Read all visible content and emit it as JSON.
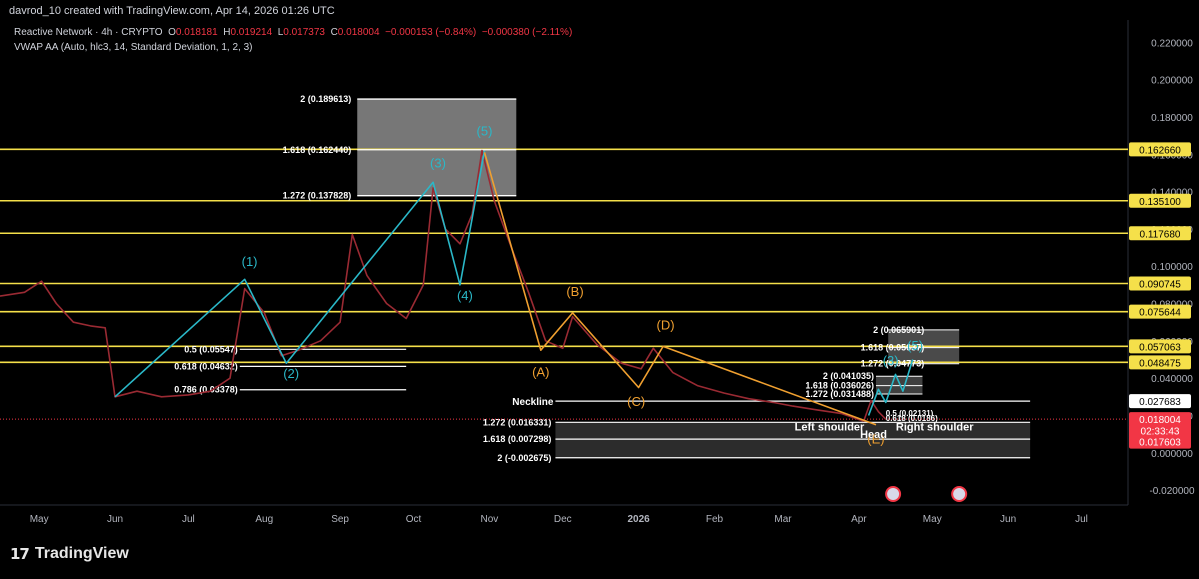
{
  "caption": "davrod_10 created with TradingView.com, Apr 14, 2026 01:26 UTC",
  "legend": {
    "symbol": "Reactive Network · 4h · CRYPTO",
    "o_label": "O",
    "o": "0.018181",
    "h_label": "H",
    "h": "0.019214",
    "l_label": "L",
    "l": "0.017373",
    "c_label": "C",
    "c": "0.018004",
    "change": "−0.000153 (−0.84%)",
    "change2": "−0.000380 (−2.11%)",
    "indicator": "VWAP AA (Auto, hlc3, 14, Standard Deviation, 1, 2, 3)"
  },
  "logo_text": "TradingView",
  "logo_mark": "17",
  "colors": {
    "background": "#000000",
    "price_line": "#9a2a33",
    "wave_blue": "#2ab8c8",
    "wave_orange": "#f0a030",
    "level_yellow": "#f5e04a",
    "white_line": "#ffffff",
    "last_price_red": "#f23645"
  },
  "chart_data": {
    "type": "line",
    "ylim": [
      -0.028,
      0.232
    ],
    "y_ticks": [
      "0.220000",
      "0.200000",
      "0.180000",
      "0.160000",
      "0.140000",
      "0.120000",
      "0.100000",
      "0.080000",
      "0.060000",
      "0.040000",
      "0.020000",
      "0.000000",
      "-0.020000"
    ],
    "y_tick_values": [
      0.22,
      0.2,
      0.18,
      0.16,
      0.14,
      0.12,
      0.1,
      0.08,
      0.06,
      0.04,
      0.02,
      0.0,
      -0.02
    ],
    "x_range": [
      "2025-04-15",
      "2026-07-20"
    ],
    "x_ticks": [
      {
        "label": "May",
        "date": "2025-05-01"
      },
      {
        "label": "Jun",
        "date": "2025-06-01"
      },
      {
        "label": "Jul",
        "date": "2025-07-01"
      },
      {
        "label": "Aug",
        "date": "2025-08-01"
      },
      {
        "label": "Sep",
        "date": "2025-09-01"
      },
      {
        "label": "Oct",
        "date": "2025-10-01"
      },
      {
        "label": "Nov",
        "date": "2025-11-01"
      },
      {
        "label": "Dec",
        "date": "2025-12-01"
      },
      {
        "label": "2026",
        "date": "2026-01-01"
      },
      {
        "label": "Feb",
        "date": "2026-02-01"
      },
      {
        "label": "Mar",
        "date": "2026-03-01"
      },
      {
        "label": "Apr",
        "date": "2026-04-01"
      },
      {
        "label": "May",
        "date": "2026-05-01"
      },
      {
        "label": "Jun",
        "date": "2026-06-01"
      },
      {
        "label": "Jul",
        "date": "2026-07-01"
      }
    ],
    "price_series": [
      [
        "2025-04-15",
        0.084
      ],
      [
        "2025-04-25",
        0.086
      ],
      [
        "2025-05-02",
        0.092
      ],
      [
        "2025-05-08",
        0.08
      ],
      [
        "2025-05-15",
        0.07
      ],
      [
        "2025-05-22",
        0.068
      ],
      [
        "2025-05-28",
        0.067
      ],
      [
        "2025-06-01",
        0.03
      ],
      [
        "2025-06-10",
        0.033
      ],
      [
        "2025-06-20",
        0.03
      ],
      [
        "2025-07-01",
        0.031
      ],
      [
        "2025-07-10",
        0.033
      ],
      [
        "2025-07-18",
        0.04
      ],
      [
        "2025-07-24",
        0.088
      ],
      [
        "2025-08-01",
        0.075
      ],
      [
        "2025-08-08",
        0.052
      ],
      [
        "2025-08-15",
        0.055
      ],
      [
        "2025-08-24",
        0.06
      ],
      [
        "2025-09-01",
        0.07
      ],
      [
        "2025-09-06",
        0.117
      ],
      [
        "2025-09-12",
        0.095
      ],
      [
        "2025-09-20",
        0.08
      ],
      [
        "2025-09-28",
        0.072
      ],
      [
        "2025-10-05",
        0.09
      ],
      [
        "2025-10-09",
        0.142
      ],
      [
        "2025-10-14",
        0.12
      ],
      [
        "2025-10-20",
        0.112
      ],
      [
        "2025-10-25",
        0.128
      ],
      [
        "2025-10-29",
        0.162
      ],
      [
        "2025-11-03",
        0.135
      ],
      [
        "2025-11-10",
        0.11
      ],
      [
        "2025-11-17",
        0.086
      ],
      [
        "2025-11-24",
        0.06
      ],
      [
        "2025-12-01",
        0.056
      ],
      [
        "2025-12-05",
        0.073
      ],
      [
        "2025-12-15",
        0.058
      ],
      [
        "2025-12-25",
        0.048
      ],
      [
        "2026-01-02",
        0.045
      ],
      [
        "2026-01-07",
        0.056
      ],
      [
        "2026-01-15",
        0.043
      ],
      [
        "2026-01-25",
        0.036
      ],
      [
        "2026-02-05",
        0.032
      ],
      [
        "2026-02-15",
        0.029
      ],
      [
        "2026-02-25",
        0.027
      ],
      [
        "2026-03-05",
        0.025
      ],
      [
        "2026-03-15",
        0.023
      ],
      [
        "2026-03-25",
        0.021
      ],
      [
        "2026-04-03",
        0.017
      ],
      [
        "2026-04-06",
        0.028
      ],
      [
        "2026-04-09",
        0.022
      ],
      [
        "2026-04-12",
        0.018
      ]
    ],
    "blue_wave": [
      [
        "2025-06-01",
        0.03
      ],
      [
        "2025-07-24",
        0.093
      ],
      [
        "2025-08-10",
        0.048
      ],
      [
        "2025-10-09",
        0.145
      ],
      [
        "2025-10-20",
        0.09
      ],
      [
        "2025-10-30",
        0.162
      ]
    ],
    "blue_wave_labels": [
      {
        "label": "(1)",
        "date": "2025-07-26",
        "y": 0.1
      },
      {
        "label": "(2)",
        "date": "2025-08-12",
        "y": 0.04
      },
      {
        "label": "(3)",
        "date": "2025-10-11",
        "y": 0.153
      },
      {
        "label": "(4)",
        "date": "2025-10-22",
        "y": 0.082
      },
      {
        "label": "(5)",
        "date": "2025-10-30",
        "y": 0.17
      }
    ],
    "orange_wave": [
      [
        "2025-10-30",
        0.161
      ],
      [
        "2025-11-22",
        0.055
      ],
      [
        "2025-12-05",
        0.075
      ],
      [
        "2026-01-01",
        0.035
      ],
      [
        "2026-01-11",
        0.057
      ],
      [
        "2026-04-08",
        0.015
      ]
    ],
    "orange_wave_labels": [
      {
        "label": "(A)",
        "date": "2025-11-22",
        "y": 0.041
      },
      {
        "label": "(B)",
        "date": "2025-12-06",
        "y": 0.084
      },
      {
        "label": "(C)",
        "date": "2025-12-31",
        "y": 0.025
      },
      {
        "label": "(D)",
        "date": "2026-01-12",
        "y": 0.066
      },
      {
        "label": "(E)",
        "date": "2026-04-08",
        "y": 0.005
      }
    ],
    "projection_wave": [
      [
        "2026-04-05",
        0.02
      ],
      [
        "2026-04-09",
        0.034
      ],
      [
        "2026-04-12",
        0.027
      ],
      [
        "2026-04-16",
        0.042
      ],
      [
        "2026-04-19",
        0.033
      ],
      [
        "2026-04-23",
        0.05
      ]
    ],
    "projection_labels": [
      {
        "label": "(3)",
        "date": "2026-04-14",
        "y": 0.047
      },
      {
        "label": "(5)",
        "date": "2026-04-24",
        "y": 0.055
      }
    ],
    "yellow_levels": [
      0.16266,
      0.1351,
      0.11768,
      0.090745,
      0.075644,
      0.057063,
      0.048475
    ],
    "right_labels": [
      {
        "text": "0.162660",
        "y": 0.16266,
        "style": "yellow"
      },
      {
        "text": "0.135100",
        "y": 0.1351,
        "style": "yellow"
      },
      {
        "text": "0.117680",
        "y": 0.11768,
        "style": "yellow"
      },
      {
        "text": "0.090745",
        "y": 0.090745,
        "style": "yellow"
      },
      {
        "text": "0.075644",
        "y": 0.075644,
        "style": "yellow"
      },
      {
        "text": "0.057063",
        "y": 0.057063,
        "style": "yellow"
      },
      {
        "text": "0.048475",
        "y": 0.048475,
        "style": "yellow"
      },
      {
        "text": "0.027683",
        "y": 0.027683,
        "style": "white"
      },
      {
        "text": "0.018004",
        "y": 0.018004,
        "style": "red"
      },
      {
        "text": "02:33:43",
        "y": 0.0119,
        "style": "red"
      },
      {
        "text": "0.017603",
        "y": 0.006,
        "style": "red"
      }
    ],
    "top_fib_box": {
      "x0": "2025-09-08",
      "x1": "2025-11-12",
      "y0": 0.137828,
      "y1": 0.189613
    },
    "top_fib_levels": [
      {
        "label": "2 (0.189613)",
        "y": 0.189613
      },
      {
        "label": "1.618 (0.162440)",
        "y": 0.16244
      },
      {
        "label": "1.272 (0.137828)",
        "y": 0.137828
      }
    ],
    "mid_fib_levels": [
      {
        "label": "0.5 (0.05547)",
        "y": 0.05547,
        "x0": "2025-07-22",
        "x1": "2025-09-28"
      },
      {
        "label": "0.618 (0.04632)",
        "y": 0.04632,
        "x0": "2025-07-22",
        "x1": "2025-09-28"
      },
      {
        "label": "0.786 (0.03378)",
        "y": 0.033788,
        "x0": "2025-07-22",
        "x1": "2025-09-28"
      }
    ],
    "lower_fib_box": {
      "x0": "2025-11-28",
      "x1": "2026-06-10",
      "y0": -0.002675,
      "y1": 0.016331
    },
    "lower_fib_levels": [
      {
        "label": "1.272 (0.016331)",
        "y": 0.016331
      },
      {
        "label": "1.618 (0.007298)",
        "y": 0.007298
      },
      {
        "label": "2 (-0.002675)",
        "y": -0.002675
      }
    ],
    "proj_box": {
      "x0": "2026-04-13",
      "x1": "2026-05-12",
      "y0": 0.04773,
      "y1": 0.065901
    },
    "proj_levels": [
      {
        "label": "2 (0.065901)",
        "y": 0.065901
      },
      {
        "label": "1.618 (0.05637)",
        "y": 0.05637
      },
      {
        "label": "1.272 (0.04773)",
        "y": 0.04773
      }
    ],
    "small_box": {
      "x0": "2026-04-08",
      "x1": "2026-04-27",
      "y0": 0.031488,
      "y1": 0.041035
    },
    "small_levels": [
      {
        "label": "2 (0.041035)",
        "y": 0.041035
      },
      {
        "label": "1.618 (0.036026)",
        "y": 0.036026
      },
      {
        "label": "1.272 (0.031488)",
        "y": 0.031488
      }
    ],
    "tiny_levels": [
      {
        "label": "0.5 (0.02131)",
        "y": 0.0213
      },
      {
        "label": "0.618 (0.0186)",
        "y": 0.0186
      }
    ],
    "neckline": {
      "label": "Neckline",
      "y": 0.027683,
      "x0": "2025-11-28",
      "x1": "2026-06-10"
    },
    "annotations": [
      {
        "text": "Left shoulder",
        "date": "2026-03-20",
        "y": 0.012
      },
      {
        "text": "Head",
        "date": "2026-04-07",
        "y": 0.008
      },
      {
        "text": "Right shoulder",
        "date": "2026-05-02",
        "y": 0.012
      }
    ],
    "event_icons": [
      "2026-04-15",
      "2026-05-12"
    ]
  }
}
